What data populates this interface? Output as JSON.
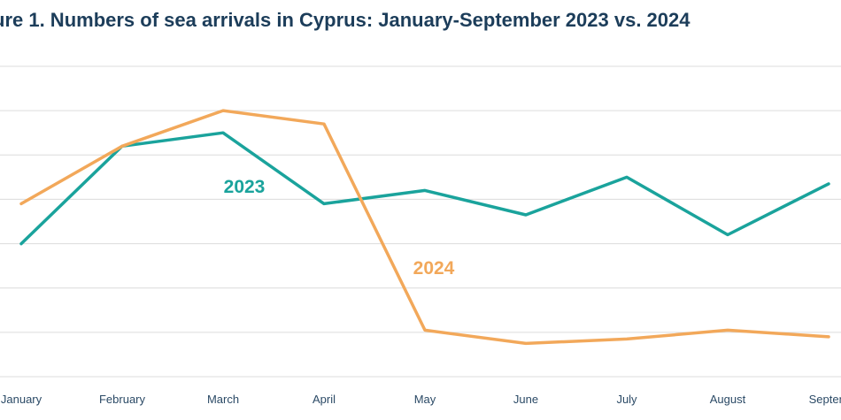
{
  "chart_data": {
    "type": "line",
    "title": "ure 1. Numbers of sea arrivals in Cyprus: January-September 2023 vs. 2024",
    "xlabel": "",
    "ylabel": "",
    "categories": [
      "January",
      "February",
      "March",
      "April",
      "May",
      "June",
      "July",
      "August",
      "Septem"
    ],
    "ylim": [
      0,
      7
    ],
    "grid": true,
    "legend": "inline labels",
    "series": [
      {
        "name": "2023",
        "color": "#1aa39c",
        "values": [
          3.0,
          5.2,
          5.5,
          3.9,
          4.2,
          3.65,
          4.5,
          3.2,
          4.35
        ]
      },
      {
        "name": "2024",
        "color": "#f2a85a",
        "values": [
          3.9,
          5.2,
          6.0,
          5.7,
          1.05,
          0.75,
          0.85,
          1.05,
          0.9
        ]
      }
    ]
  }
}
